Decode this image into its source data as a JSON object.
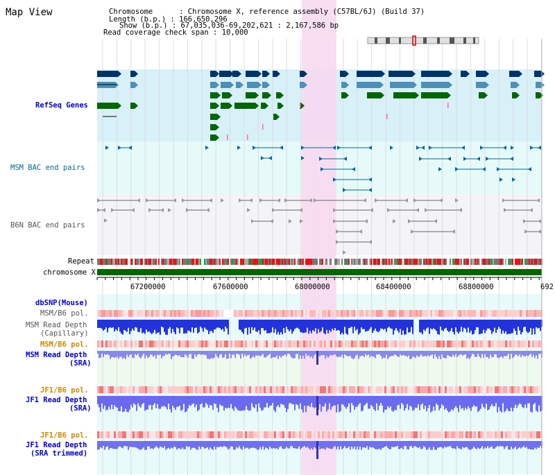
{
  "title": "Map View",
  "info": {
    "line1_key": "Chromosome",
    "line1_val": ": Chromosome X, reference assembly (C57BL/6J) (Build 37)",
    "line2_key": "Length (b.p.)",
    "line2_val": ": 166,650,296",
    "line3_key": "Show (b.p.)",
    "line3_val": ": 67,035,036-69,202,621 : 2,167,586 bp",
    "line4": "Read coverage check span : 10,000"
  },
  "tracks": {
    "refseq": "RefSeq Genes",
    "msm_bac": "MSM BAC end pairs",
    "b6n_bac": "B6N BAC end pairs",
    "repeat": "Repeat",
    "chromosome": "chromosome X",
    "dbsnp": "dbSNP(Mouse)",
    "msm_b6_pol_1": "MSM/B6 pol.",
    "msm_depth_cap_1": "MSM Read Depth",
    "msm_depth_cap_2": "(Capillary)",
    "msm_b6_pol_2": "MSM/B6 pol.",
    "msm_depth_sra_1": "MSM Read Depth",
    "msm_depth_sra_2": "(SRA)",
    "jf1_b6_pol_1": "JF1/B6 pol.",
    "jf1_depth_sra_1": "JF1 Read Depth",
    "jf1_depth_sra_2": "(SRA)",
    "jf1_b6_pol_2": "JF1/B6 pol.",
    "jf1_depth_trim_1": "JF1 Read Depth",
    "jf1_depth_trim_2": "(SRA trimmed)"
  },
  "ruler": {
    "ticks": [
      "67200000",
      "67600000",
      "68000000",
      "68400000",
      "68800000",
      "692"
    ]
  },
  "colors": {
    "refseq_bg": "#d8f0f8",
    "bac_bg": "#e6fafa",
    "b6n_bg": "#f4f4f8",
    "highlight": "#f8d8f0",
    "label_blue": "#0000cc",
    "label_teal": "#006699",
    "label_orange": "#cc8800",
    "chrom_green": "#006600"
  }
}
